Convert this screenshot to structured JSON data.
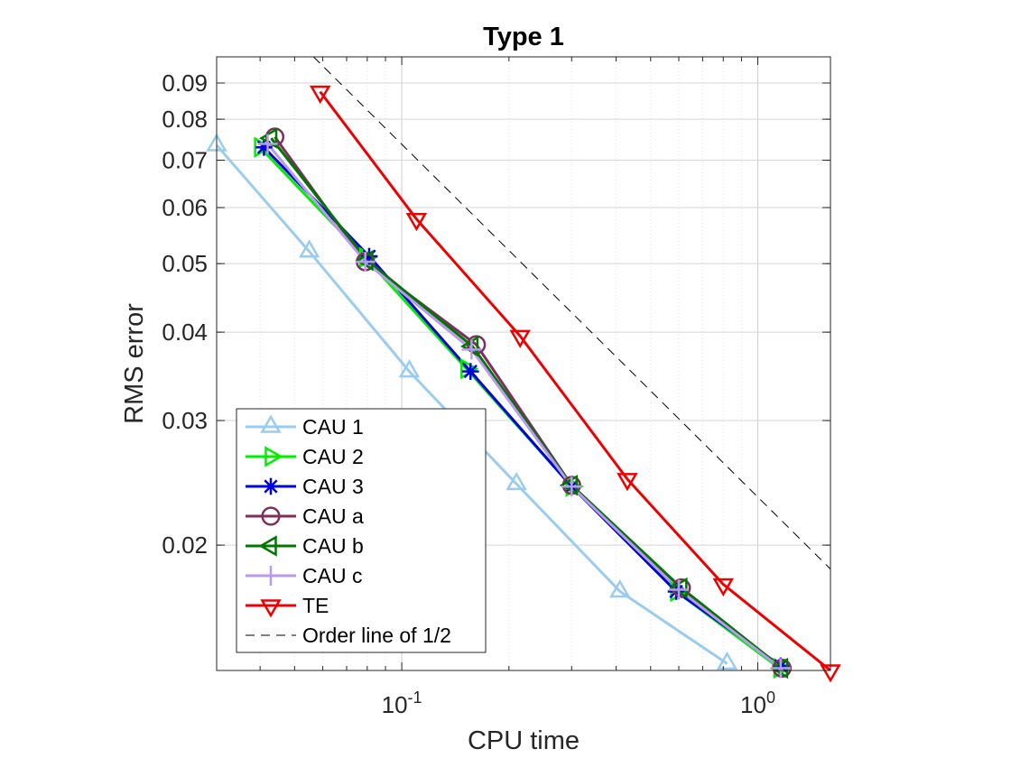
{
  "chart_data": {
    "type": "line",
    "title": "Type 1",
    "xlabel": "CPU time",
    "ylabel": "RMS error",
    "xscale": "log",
    "yscale": "log",
    "xlim": [
      0.0302,
      1.6
    ],
    "ylim": [
      0.0133,
      0.098
    ],
    "xticks": [
      {
        "value": 0.1,
        "base": "10",
        "exp": "-1"
      },
      {
        "value": 1,
        "base": "10",
        "exp": "0"
      }
    ],
    "yticks": [
      {
        "value": 0.02,
        "label": "0.02"
      },
      {
        "value": 0.03,
        "label": "0.03"
      },
      {
        "value": 0.04,
        "label": "0.04"
      },
      {
        "value": 0.05,
        "label": "0.05"
      },
      {
        "value": 0.06,
        "label": "0.06"
      },
      {
        "value": 0.07,
        "label": "0.07"
      },
      {
        "value": 0.08,
        "label": "0.08"
      },
      {
        "value": 0.09,
        "label": "0.09"
      }
    ],
    "grid": true,
    "legend_position": "bottom-left",
    "series": [
      {
        "name": "CAU 1",
        "color": "#99ccee",
        "marker": "triangle-up",
        "x": [
          0.0302,
          0.055,
          0.105,
          0.21,
          0.41,
          0.82
        ],
        "y": [
          0.0735,
          0.052,
          0.0352,
          0.0244,
          0.0172,
          0.0136
        ]
      },
      {
        "name": "CAU 2",
        "color": "#00ee00",
        "marker": "triangle-right",
        "x": [
          0.04,
          0.079,
          0.152,
          0.3,
          0.59,
          1.15
        ],
        "y": [
          0.073,
          0.051,
          0.0355,
          0.0242,
          0.0172,
          0.0134
        ]
      },
      {
        "name": "CAU 3",
        "color": "#0000dd",
        "marker": "asterisk",
        "x": [
          0.041,
          0.081,
          0.156,
          0.3,
          0.59,
          1.16
        ],
        "y": [
          0.073,
          0.0512,
          0.0352,
          0.0242,
          0.0172,
          0.0135
        ]
      },
      {
        "name": "CAU a",
        "color": "#7e2f5e",
        "marker": "circle",
        "x": [
          0.044,
          0.079,
          0.162,
          0.3,
          0.61,
          1.17
        ],
        "y": [
          0.0755,
          0.0503,
          0.0384,
          0.0243,
          0.0174,
          0.0134
        ]
      },
      {
        "name": "CAU b",
        "color": "#007700",
        "marker": "triangle-left",
        "x": [
          0.043,
          0.08,
          0.158,
          0.3,
          0.61,
          1.17
        ],
        "y": [
          0.0752,
          0.0505,
          0.0382,
          0.0243,
          0.0174,
          0.0134
        ]
      },
      {
        "name": "CAU c",
        "color": "#bb99ee",
        "marker": "plus",
        "x": [
          0.042,
          0.079,
          0.157,
          0.3,
          0.6,
          1.16
        ],
        "y": [
          0.0738,
          0.0503,
          0.0378,
          0.0242,
          0.0173,
          0.0134
        ]
      },
      {
        "name": "TE",
        "color": "#ee0000",
        "marker": "triangle-down",
        "x": [
          0.059,
          0.11,
          0.215,
          0.43,
          0.8,
          1.6
        ],
        "y": [
          0.0875,
          0.0578,
          0.0395,
          0.0248,
          0.0176,
          0.0133
        ]
      },
      {
        "name": "Order line of 1/2",
        "color": "#000000",
        "marker": "none",
        "dash": true,
        "x": [
          0.0565,
          1.6
        ],
        "y": [
          0.098,
          0.0185
        ]
      }
    ]
  }
}
